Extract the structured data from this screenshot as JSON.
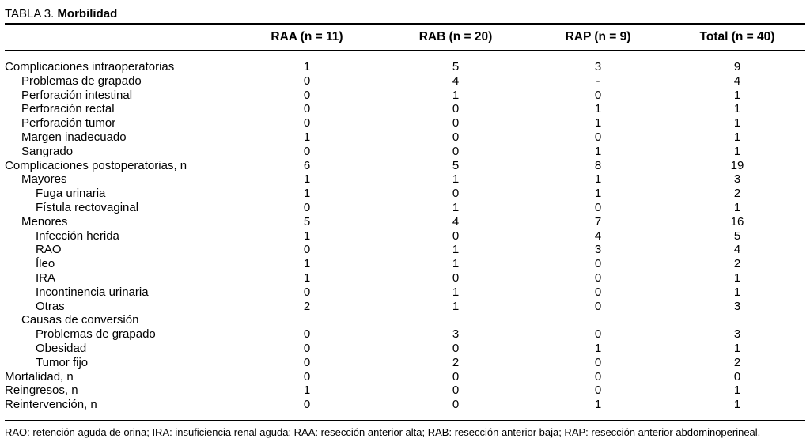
{
  "title": {
    "prefix": "TABLA 3. ",
    "bold": "Morbilidad"
  },
  "table": {
    "columns": [
      "RAA (n = 11)",
      "RAB (n = 20)",
      "RAP (n = 9)",
      "Total (n = 40)"
    ],
    "rows": [
      {
        "label": "Complicaciones intraoperatorias",
        "indent": 0,
        "values": [
          "1",
          "5",
          "3",
          "9"
        ]
      },
      {
        "label": "Problemas de grapado",
        "indent": 1,
        "values": [
          "0",
          "4",
          "-",
          "4"
        ]
      },
      {
        "label": "Perforación intestinal",
        "indent": 1,
        "values": [
          "0",
          "1",
          "0",
          "1"
        ]
      },
      {
        "label": "Perforación rectal",
        "indent": 1,
        "values": [
          "0",
          "0",
          "1",
          "1"
        ]
      },
      {
        "label": "Perforación tumor",
        "indent": 1,
        "values": [
          "0",
          "0",
          "1",
          "1"
        ]
      },
      {
        "label": "Margen inadecuado",
        "indent": 1,
        "values": [
          "1",
          "0",
          "0",
          "1"
        ]
      },
      {
        "label": "Sangrado",
        "indent": 1,
        "values": [
          "0",
          "0",
          "1",
          "1"
        ]
      },
      {
        "label": "Complicaciones postoperatorias, n",
        "indent": 0,
        "values": [
          "6",
          "5",
          "8",
          "19"
        ]
      },
      {
        "label": "Mayores",
        "indent": 1,
        "values": [
          "1",
          "1",
          "1",
          "3"
        ]
      },
      {
        "label": "Fuga urinaria",
        "indent": 2,
        "values": [
          "1",
          "0",
          "1",
          "2"
        ]
      },
      {
        "label": "Fístula rectovaginal",
        "indent": 2,
        "values": [
          "0",
          "1",
          "0",
          "1"
        ]
      },
      {
        "label": "Menores",
        "indent": 1,
        "values": [
          "5",
          "4",
          "7",
          "16"
        ]
      },
      {
        "label": "Infección herida",
        "indent": 2,
        "values": [
          "1",
          "0",
          "4",
          "5"
        ]
      },
      {
        "label": "RAO",
        "indent": 2,
        "values": [
          "0",
          "1",
          "3",
          "4"
        ]
      },
      {
        "label": "Íleo",
        "indent": 2,
        "values": [
          "1",
          "1",
          "0",
          "2"
        ]
      },
      {
        "label": "IRA",
        "indent": 2,
        "values": [
          "1",
          "0",
          "0",
          "1"
        ]
      },
      {
        "label": "Incontinencia urinaria",
        "indent": 2,
        "values": [
          "0",
          "1",
          "0",
          "1"
        ]
      },
      {
        "label": "Otras",
        "indent": 2,
        "values": [
          "2",
          "1",
          "0",
          "3"
        ]
      },
      {
        "label": "Causas de conversión",
        "indent": 1,
        "values": [
          "",
          "",
          "",
          ""
        ]
      },
      {
        "label": "Problemas de grapado",
        "indent": 2,
        "values": [
          "0",
          "3",
          "0",
          "3"
        ]
      },
      {
        "label": "Obesidad",
        "indent": 2,
        "values": [
          "0",
          "0",
          "1",
          "1"
        ]
      },
      {
        "label": "Tumor fijo",
        "indent": 2,
        "values": [
          "0",
          "2",
          "0",
          "2"
        ]
      },
      {
        "label": "Mortalidad, n",
        "indent": 0,
        "values": [
          "0",
          "0",
          "0",
          "0"
        ]
      },
      {
        "label": "Reingresos, n",
        "indent": 0,
        "values": [
          "1",
          "0",
          "0",
          "1"
        ]
      },
      {
        "label": "Reintervención, n",
        "indent": 0,
        "values": [
          "0",
          "0",
          "1",
          "1"
        ]
      }
    ]
  },
  "footnote": "RAO: retención aguda de orina; IRA: insuficiencia renal aguda; RAA: resección anterior alta; RAB: resección anterior baja; RAP: resección anterior abdominoperineal.",
  "colors": {
    "text": "#000000",
    "background": "#ffffff",
    "rule": "#000000"
  }
}
